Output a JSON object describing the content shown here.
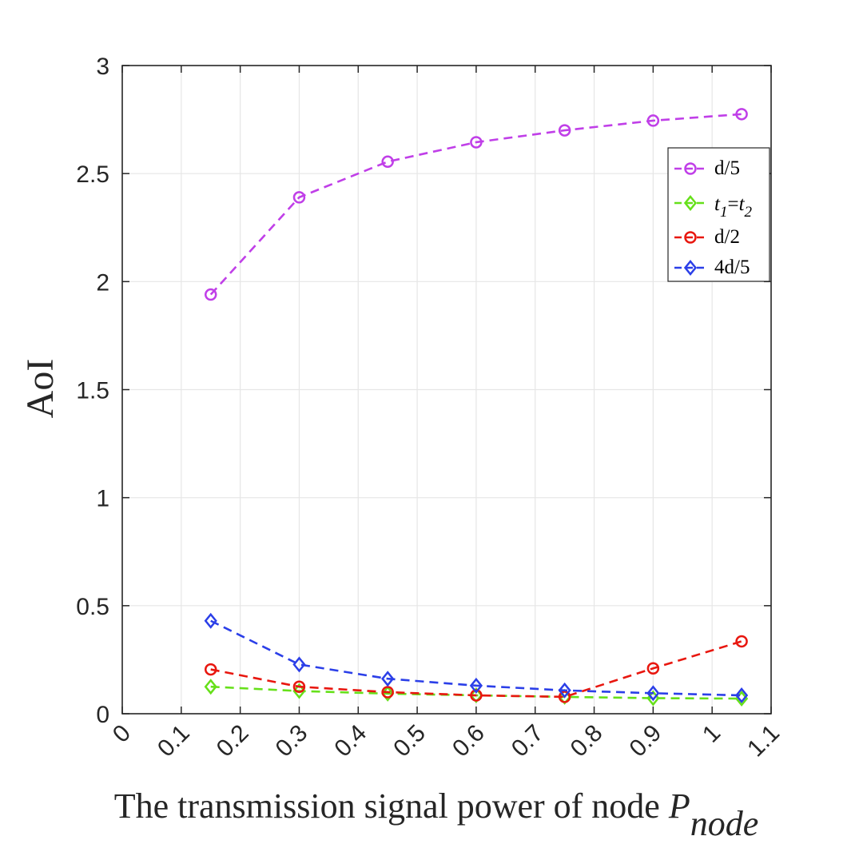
{
  "chart_data": {
    "type": "line",
    "title": "",
    "xlabel": "The transmission signal power of node ",
    "xlabel_symbol": "P",
    "xlabel_subscript": "node",
    "ylabel": "AoI",
    "xlim": [
      0,
      1.1
    ],
    "ylim": [
      0,
      3
    ],
    "grid": true,
    "legend_position": "top-right",
    "x_ticks": [
      "0",
      "0.1",
      "0.2",
      "0.3",
      "0.4",
      "0.5",
      "0.6",
      "0.7",
      "0.8",
      "0.9",
      "1",
      "1.1"
    ],
    "y_ticks": [
      "0",
      "0.5",
      "1",
      "1.5",
      "2",
      "2.5",
      "3"
    ],
    "x": [
      0.15,
      0.3,
      0.45,
      0.6,
      0.75,
      0.9,
      1.05
    ],
    "series": [
      {
        "name": "d/5",
        "legend_label": {
          "text": "d/5"
        },
        "color": "#C03FE8",
        "marker": "circle",
        "values": [
          1.94,
          2.39,
          2.555,
          2.645,
          2.7,
          2.745,
          2.775
        ]
      },
      {
        "name": "t1=t2",
        "legend_label": {
          "a": "t",
          "a_sub": "1",
          "eq": "=",
          "b": "t",
          "b_sub": "2"
        },
        "color": "#66E01A",
        "marker": "diamond",
        "values": [
          0.125,
          0.105,
          0.093,
          0.085,
          0.078,
          0.072,
          0.07
        ]
      },
      {
        "name": "d/2",
        "legend_label": {
          "text": "d/2"
        },
        "color": "#E8170F",
        "marker": "circle",
        "values": [
          0.205,
          0.125,
          0.1,
          0.085,
          0.078,
          0.21,
          0.335
        ]
      },
      {
        "name": "4d/5",
        "legend_label": {
          "text": "4d/5"
        },
        "color": "#2B3FE8",
        "marker": "diamond",
        "values": [
          0.43,
          0.228,
          0.162,
          0.13,
          0.108,
          0.095,
          0.085
        ]
      }
    ]
  }
}
